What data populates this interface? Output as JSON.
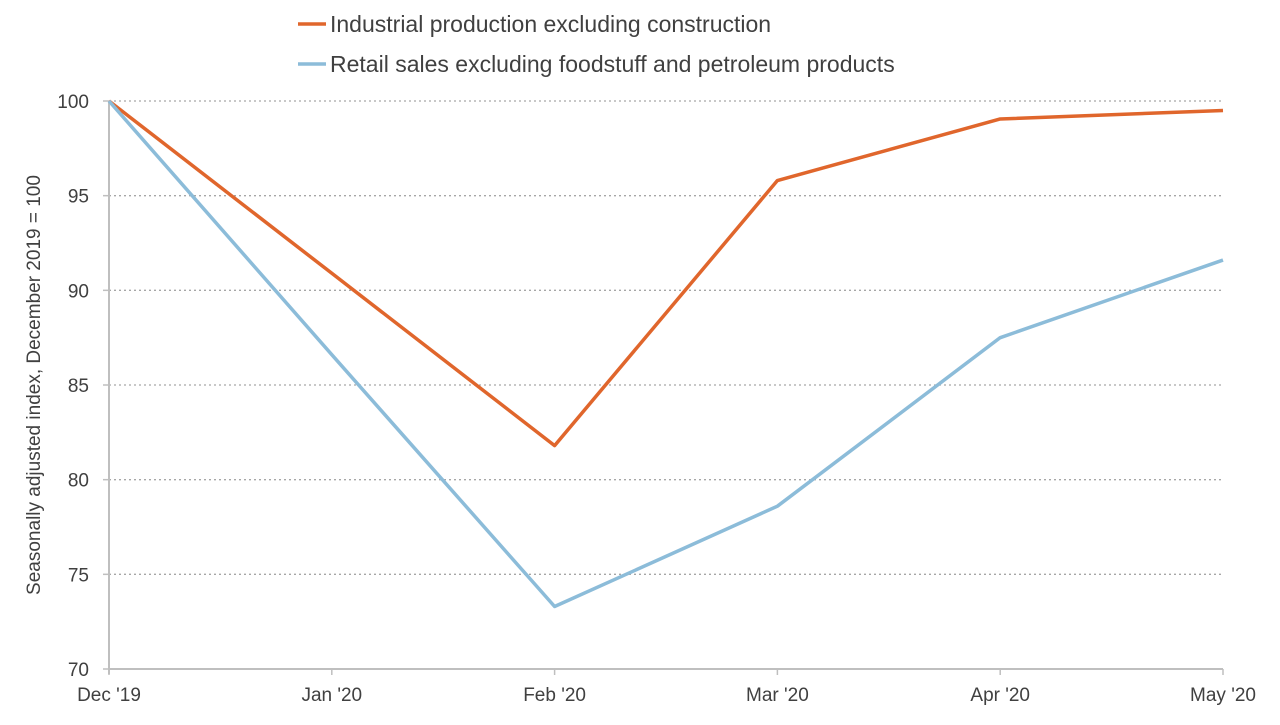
{
  "chart_data": {
    "type": "line",
    "title": "",
    "xlabel": "",
    "ylabel": "Seasonally adjusted index, December 2019 = 100",
    "categories": [
      "Dec '19",
      "Jan '20",
      "Feb '20",
      "Mar '20",
      "Apr '20",
      "May '20"
    ],
    "ylim": [
      70,
      100
    ],
    "yticks": [
      70,
      75,
      80,
      85,
      90,
      95,
      100
    ],
    "grid": "horizontal dotted",
    "legend_position": "top",
    "series": [
      {
        "name": "Industrial production excluding construction",
        "color": "#e0662c",
        "values": [
          100,
          90.9,
          81.8,
          95.8,
          99.05,
          99.5
        ]
      },
      {
        "name": "Retail sales excluding foodstuff and petroleum products",
        "color": "#8cbcd9",
        "values": [
          100,
          86.6,
          73.3,
          78.6,
          87.5,
          91.6
        ]
      }
    ]
  }
}
